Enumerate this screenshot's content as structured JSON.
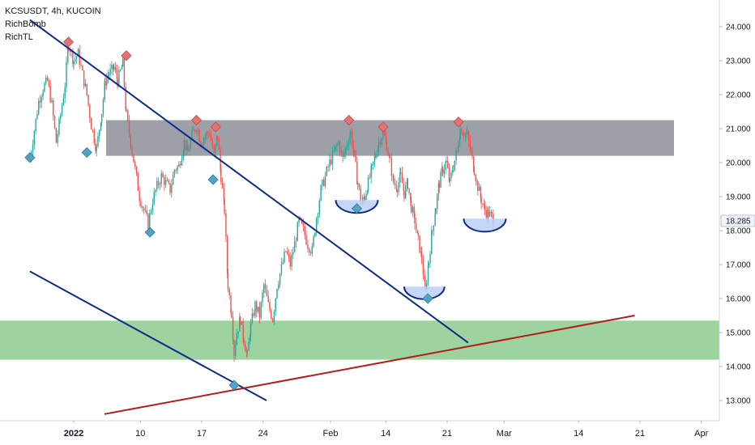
{
  "legend": {
    "symbol_line": "KCSUSDT, 4h, KUCOIN",
    "indicator_1": "RichBomb",
    "indicator_2": "RichTL"
  },
  "colors": {
    "up": "#26a69a",
    "down": "#ef5350",
    "resistance_zone": "#787b86",
    "support_zone": "#4caf50",
    "channel_line": "#0d2b8c",
    "trend_line": "#b71c1c",
    "bowl_fill": "#bbcff5",
    "bowl_stroke": "#0d2b8c",
    "marker_top": "#e57373",
    "marker_bottom": "#4fa3c7"
  },
  "chart_data": {
    "type": "candlestick",
    "symbol": "KCSUSDT",
    "timeframe": "4h",
    "exchange": "KUCOIN",
    "ylim": [
      12.6,
      24.6
    ],
    "y_ticks": [
      "24.000",
      "23.000",
      "22.000",
      "21.000",
      "20.000",
      "19.000",
      "18.000",
      "17.000",
      "16.000",
      "15.000",
      "14.000",
      "13.000"
    ],
    "x_ticks": [
      {
        "label": "2022",
        "bold": true
      },
      {
        "label": "10",
        "bold": false
      },
      {
        "label": "17",
        "bold": false
      },
      {
        "label": "24",
        "bold": false
      },
      {
        "label": "Feb",
        "bold": false
      },
      {
        "label": "14",
        "bold": false
      },
      {
        "label": "21",
        "bold": false
      },
      {
        "label": "Mar",
        "bold": false
      },
      {
        "label": "14",
        "bold": false
      },
      {
        "label": "21",
        "bold": false
      },
      {
        "label": "Apr",
        "bold": false
      }
    ],
    "last_price": "18.285",
    "price_path_days": [
      [
        -5,
        20.1
      ],
      [
        -4,
        21.8
      ],
      [
        -3.5,
        22.2
      ],
      [
        -3,
        22.4
      ],
      [
        -2.5,
        21.7
      ],
      [
        -2,
        20.6
      ],
      [
        -1.5,
        21.4
      ],
      [
        -1,
        22.3
      ],
      [
        -0.6,
        23.5
      ],
      [
        0,
        23.0
      ],
      [
        0.5,
        23.2
      ],
      [
        1,
        22.6
      ],
      [
        1.5,
        22.0
      ],
      [
        2,
        21.1
      ],
      [
        2.6,
        20.4
      ],
      [
        3.2,
        21.5
      ],
      [
        3.6,
        22.4
      ],
      [
        4,
        22.6
      ],
      [
        4.6,
        22.8
      ],
      [
        5,
        22.4
      ],
      [
        5.6,
        22.9
      ],
      [
        6,
        21.4
      ],
      [
        6.5,
        20.6
      ],
      [
        7,
        19.8
      ],
      [
        7.5,
        19.0
      ],
      [
        8,
        18.6
      ],
      [
        8.5,
        18.2
      ],
      [
        9,
        18.9
      ],
      [
        9.5,
        19.3
      ],
      [
        10,
        19.6
      ],
      [
        10.5,
        19.4
      ],
      [
        11,
        19.2
      ],
      [
        11.5,
        19.8
      ],
      [
        12,
        19.9
      ],
      [
        12.6,
        20.6
      ],
      [
        13,
        20.3
      ],
      [
        13.5,
        20.8
      ],
      [
        14,
        21.1
      ],
      [
        14.5,
        20.6
      ],
      [
        15,
        20.8
      ],
      [
        15.5,
        20.9
      ],
      [
        16,
        20.2
      ],
      [
        16.4,
        20.8
      ],
      [
        16.8,
        19.6
      ],
      [
        17.2,
        18.6
      ],
      [
        17.6,
        16.4
      ],
      [
        18,
        15.6
      ],
      [
        18.3,
        14.4
      ],
      [
        18.6,
        15.0
      ],
      [
        19,
        15.4
      ],
      [
        19.4,
        14.8
      ],
      [
        19.8,
        14.3
      ],
      [
        20.2,
        15.2
      ],
      [
        20.7,
        15.8
      ],
      [
        21.2,
        15.5
      ],
      [
        21.7,
        16.4
      ],
      [
        22.2,
        15.8
      ],
      [
        22.7,
        15.4
      ],
      [
        23.2,
        16.4
      ],
      [
        23.7,
        16.9
      ],
      [
        24.2,
        17.4
      ],
      [
        24.7,
        17.0
      ],
      [
        25.2,
        17.6
      ],
      [
        25.7,
        18.3
      ],
      [
        26.2,
        18.0
      ],
      [
        26.7,
        17.6
      ],
      [
        27.2,
        17.4
      ],
      [
        27.7,
        18.4
      ],
      [
        28.2,
        19.2
      ],
      [
        28.7,
        19.6
      ],
      [
        29.2,
        20.0
      ],
      [
        29.7,
        20.3
      ],
      [
        30.2,
        20.6
      ],
      [
        30.7,
        20.1
      ],
      [
        31.2,
        20.6
      ],
      [
        31.6,
        20.9
      ],
      [
        32,
        20.2
      ],
      [
        32.4,
        19.4
      ],
      [
        32.8,
        18.8
      ],
      [
        33.2,
        19.0
      ],
      [
        33.6,
        19.4
      ],
      [
        34,
        19.8
      ],
      [
        34.4,
        20.2
      ],
      [
        34.8,
        20.6
      ],
      [
        35.3,
        20.9
      ],
      [
        35.7,
        20.5
      ],
      [
        36.1,
        20.0
      ],
      [
        36.5,
        19.4
      ],
      [
        36.9,
        19.3
      ],
      [
        37.3,
        19.6
      ],
      [
        37.7,
        19.1
      ],
      [
        38.1,
        19.4
      ],
      [
        38.5,
        18.7
      ],
      [
        38.9,
        18.3
      ],
      [
        39.3,
        17.7
      ],
      [
        39.7,
        17.2
      ],
      [
        40.1,
        16.2
      ],
      [
        40.5,
        17.1
      ],
      [
        40.9,
        18.0
      ],
      [
        41.3,
        18.7
      ],
      [
        41.7,
        19.4
      ],
      [
        42.1,
        19.8
      ],
      [
        42.5,
        20.0
      ],
      [
        42.9,
        19.4
      ],
      [
        43.3,
        19.9
      ],
      [
        43.7,
        20.3
      ],
      [
        44.1,
        21.0
      ],
      [
        44.5,
        20.9
      ],
      [
        44.9,
        20.8
      ],
      [
        45.3,
        20.3
      ],
      [
        45.7,
        19.8
      ],
      [
        46.1,
        19.3
      ],
      [
        46.5,
        18.9
      ],
      [
        46.9,
        18.6
      ],
      [
        47.3,
        18.5
      ],
      [
        47.7,
        18.4
      ],
      [
        48.0,
        18.28
      ]
    ],
    "resistance_zone": [
      20.2,
      21.25
    ],
    "support_zone": [
      14.2,
      15.35
    ],
    "top_markers": [
      {
        "day": -0.6,
        "price": 23.55
      },
      {
        "day": 6.0,
        "price": 23.15
      },
      {
        "day": 14.0,
        "price": 21.25
      },
      {
        "day": 16.2,
        "price": 21.05
      },
      {
        "day": 31.4,
        "price": 21.25
      },
      {
        "day": 35.3,
        "price": 21.05
      },
      {
        "day": 43.9,
        "price": 21.2
      }
    ],
    "bottom_markers": [
      {
        "day": -5.0,
        "price": 20.15
      },
      {
        "day": 1.5,
        "price": 20.3
      },
      {
        "day": 8.7,
        "price": 17.95
      },
      {
        "day": 15.9,
        "price": 19.5
      },
      {
        "day": 18.3,
        "price": 13.45
      },
      {
        "day": 32.3,
        "price": 18.65
      },
      {
        "day": 40.4,
        "price": 16.0
      }
    ],
    "trend_lines": [
      {
        "kind": "channel-upper",
        "from": [
          -5,
          24.2
        ],
        "to": [
          45,
          14.7
        ]
      },
      {
        "kind": "channel-lower",
        "from": [
          -5,
          16.8
        ],
        "to": [
          22,
          13.0
        ]
      },
      {
        "kind": "rising-support",
        "from": [
          3.5,
          12.6
        ],
        "to": [
          64,
          15.5
        ]
      }
    ],
    "bowls": [
      {
        "day": 32.3,
        "price": 18.9,
        "half_width_days": 2.4
      },
      {
        "day": 40.0,
        "price": 16.35,
        "half_width_days": 2.3
      },
      {
        "day": 46.9,
        "price": 18.35,
        "half_width_days": 2.4
      }
    ]
  }
}
